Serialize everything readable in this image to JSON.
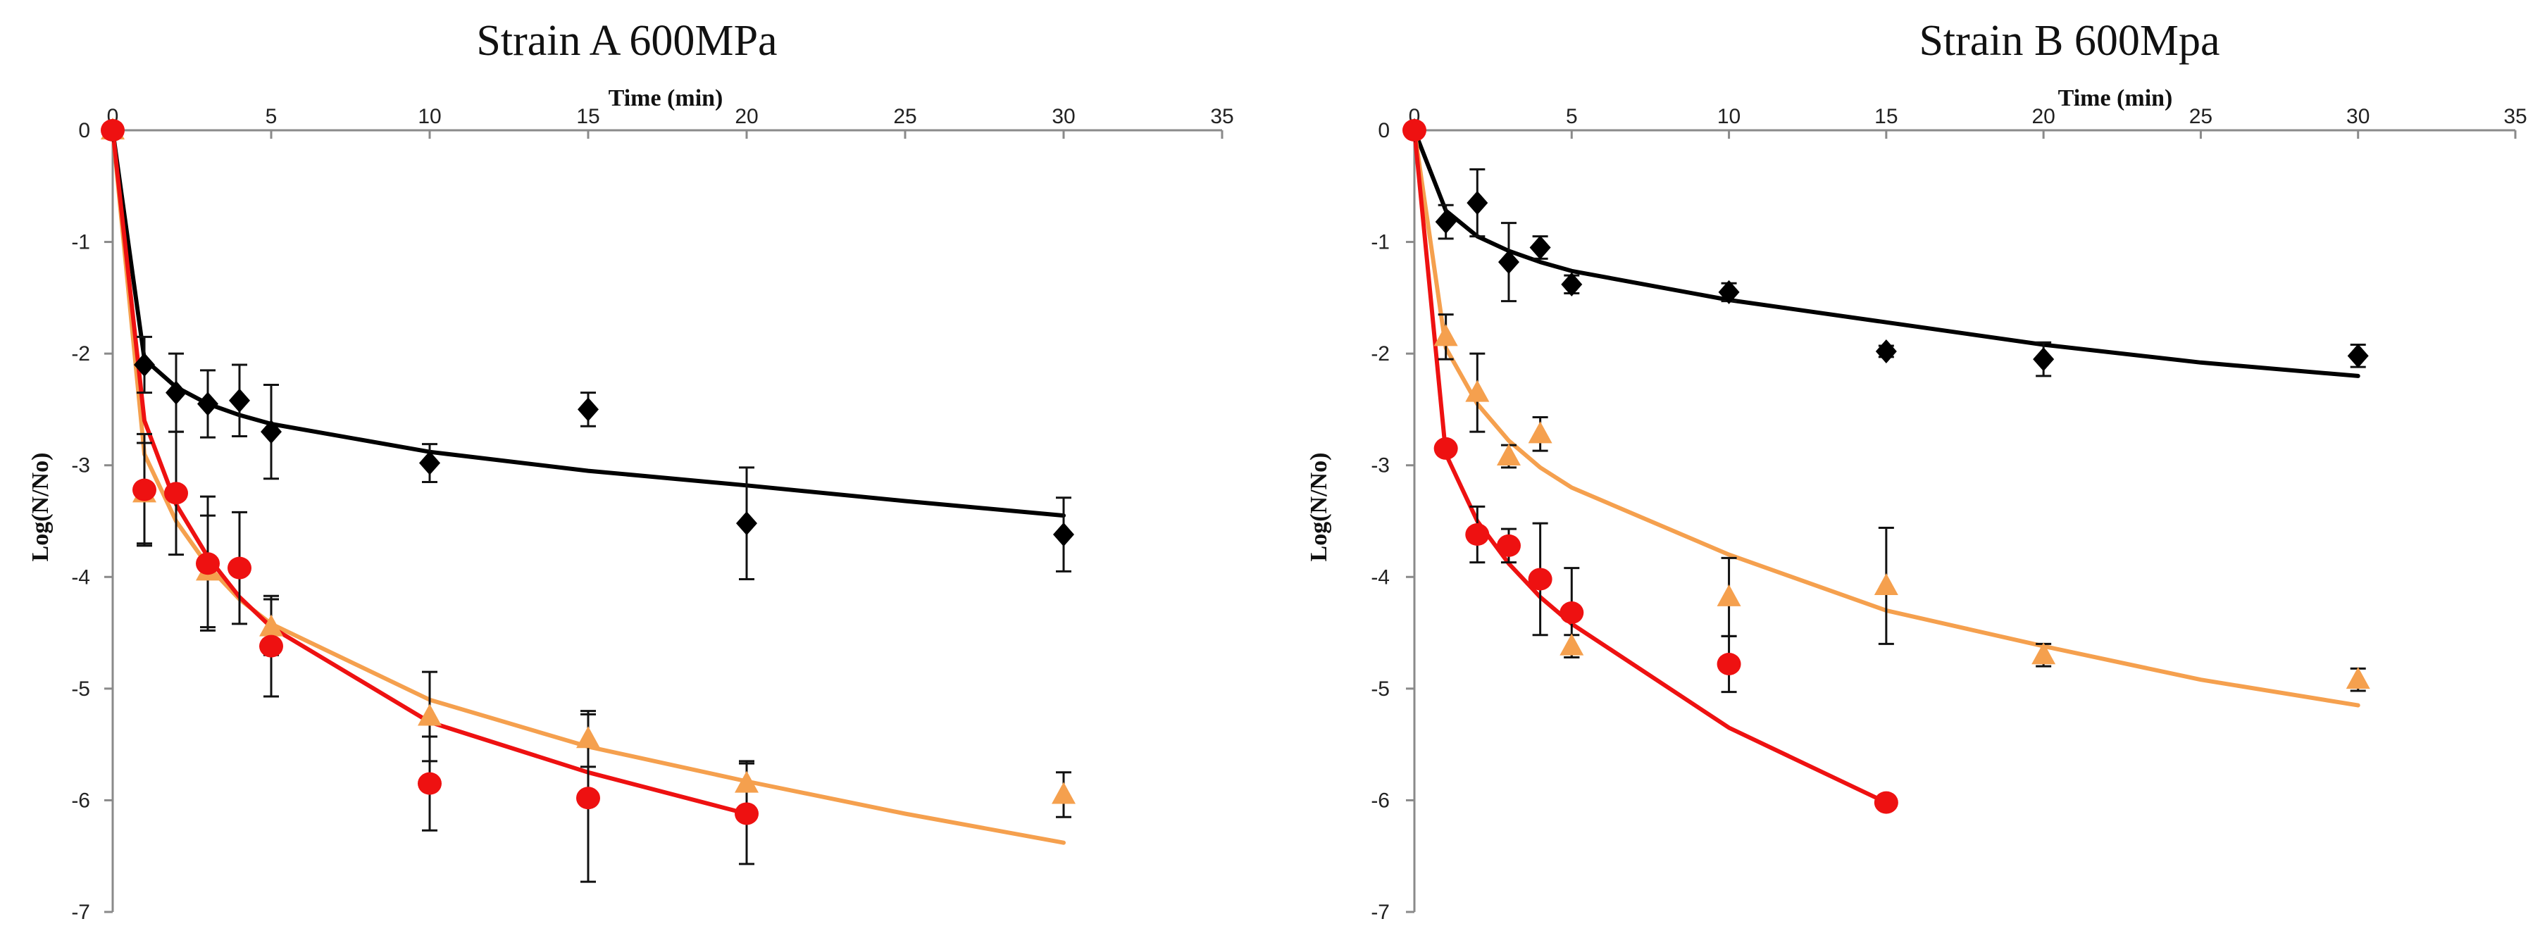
{
  "colors": {
    "black_series": "#000000",
    "orange_series": "#F5A04E",
    "red_series": "#EE1111",
    "axis": "#8a8a8a",
    "error_bar": "#111111"
  },
  "chart_data": [
    {
      "type": "scatter",
      "title": "Strain A 600MPa",
      "xlabel": "Time (min)",
      "ylabel": "Log(N/No)",
      "xlim": [
        0,
        35
      ],
      "ylim": [
        -7,
        0
      ],
      "x_ticks": [
        0,
        5,
        10,
        15,
        20,
        25,
        30,
        35
      ],
      "y_ticks": [
        0,
        -1,
        -2,
        -3,
        -4,
        -5,
        -6,
        -7
      ],
      "series": [
        {
          "name": "black",
          "marker": "diamond",
          "color": "#000000",
          "x": [
            0,
            1,
            2,
            3,
            4,
            5,
            10,
            15,
            20,
            30
          ],
          "y": [
            0,
            -2.1,
            -2.35,
            -2.45,
            -2.42,
            -2.7,
            -2.98,
            -2.5,
            -3.52,
            -3.62
          ],
          "err": [
            0,
            0.25,
            0.35,
            0.3,
            0.32,
            0.42,
            0.17,
            0.15,
            0.5,
            0.33
          ],
          "fit": {
            "kind": "log",
            "anchor": 0,
            "x": [
              1,
              2,
              3,
              4,
              5,
              10,
              15,
              20,
              25,
              30
            ],
            "y": [
              -2.05,
              -2.3,
              -2.45,
              -2.55,
              -2.63,
              -2.88,
              -3.05,
              -3.18,
              -3.32,
              -3.45
            ]
          }
        },
        {
          "name": "orange",
          "marker": "triangle",
          "color": "#F5A04E",
          "x": [
            0,
            1,
            3,
            5,
            10,
            15,
            20,
            30
          ],
          "y": [
            0,
            -3.25,
            -3.95,
            -4.45,
            -5.25,
            -5.45,
            -5.85,
            -5.95
          ],
          "err": [
            0,
            0.45,
            0.5,
            0.25,
            0.4,
            0.25,
            0.2,
            0.2
          ],
          "fit": {
            "kind": "log",
            "anchor": 0,
            "x": [
              1,
              2,
              3,
              4,
              5,
              10,
              15,
              20,
              25,
              30
            ],
            "y": [
              -2.9,
              -3.5,
              -3.9,
              -4.2,
              -4.42,
              -5.1,
              -5.52,
              -5.83,
              -6.12,
              -6.38
            ]
          }
        },
        {
          "name": "red",
          "marker": "circle",
          "color": "#EE1111",
          "x": [
            0,
            1,
            2,
            3,
            4,
            5,
            10,
            15,
            20
          ],
          "y": [
            0,
            -3.22,
            -3.25,
            -3.88,
            -3.92,
            -4.62,
            -5.85,
            -5.98,
            -6.12
          ],
          "err": [
            0,
            0.5,
            0.55,
            0.6,
            0.5,
            0.45,
            0.42,
            0.75,
            0.45
          ],
          "fit": {
            "kind": "log",
            "anchor": 0,
            "x": [
              1,
              2,
              3,
              4,
              5,
              10,
              15,
              20
            ],
            "y": [
              -2.6,
              -3.35,
              -3.82,
              -4.18,
              -4.45,
              -5.3,
              -5.75,
              -6.12
            ]
          }
        }
      ]
    },
    {
      "type": "scatter",
      "title": "Strain B 600Mpa",
      "xlabel": "Time (min)",
      "ylabel": "Log(N/No)",
      "xlim": [
        0,
        35
      ],
      "ylim": [
        -7,
        0
      ],
      "x_ticks": [
        0,
        5,
        10,
        15,
        20,
        25,
        30,
        35
      ],
      "y_ticks": [
        0,
        -1,
        -2,
        -3,
        -4,
        -5,
        -6,
        -7
      ],
      "series": [
        {
          "name": "black",
          "marker": "diamond",
          "color": "#000000",
          "x": [
            0,
            1,
            2,
            3,
            4,
            5,
            10,
            15,
            20,
            30
          ],
          "y": [
            0,
            -0.82,
            -0.65,
            -1.18,
            -1.05,
            -1.38,
            -1.45,
            -1.98,
            -2.05,
            -2.02
          ],
          "err": [
            0,
            0.15,
            0.3,
            0.35,
            0.1,
            0.08,
            0.08,
            0.05,
            0.15,
            0.1
          ],
          "fit": {
            "kind": "log",
            "anchor": 0,
            "x": [
              1,
              2,
              3,
              4,
              5,
              10,
              15,
              20,
              25,
              30
            ],
            "y": [
              -0.72,
              -0.95,
              -1.08,
              -1.18,
              -1.26,
              -1.52,
              -1.72,
              -1.92,
              -2.08,
              -2.2
            ]
          }
        },
        {
          "name": "orange",
          "marker": "triangle",
          "color": "#F5A04E",
          "x": [
            1,
            2,
            3,
            4,
            5,
            10,
            15,
            20,
            30
          ],
          "y": [
            -1.85,
            -2.35,
            -2.92,
            -2.72,
            -4.62,
            -4.18,
            -4.08,
            -4.7,
            -4.92
          ],
          "err": [
            0.2,
            0.35,
            0.1,
            0.15,
            0.1,
            0.35,
            0.52,
            0.1,
            0.1
          ],
          "fit": {
            "kind": "log",
            "anchor": 0,
            "x": [
              1,
              2,
              3,
              4,
              5,
              10,
              15,
              20,
              25,
              30
            ],
            "y": [
              -1.95,
              -2.45,
              -2.78,
              -3.02,
              -3.2,
              -3.8,
              -4.3,
              -4.62,
              -4.92,
              -5.15
            ]
          }
        },
        {
          "name": "red",
          "marker": "circle",
          "color": "#EE1111",
          "x": [
            0,
            1,
            2,
            3,
            4,
            5,
            10,
            15
          ],
          "y": [
            0,
            -2.85,
            -3.62,
            -3.72,
            -4.02,
            -4.32,
            -4.78,
            -6.02
          ],
          "err": [
            0,
            0.05,
            0.25,
            0.15,
            0.5,
            0.4,
            0.25,
            0.05
          ],
          "fit": {
            "kind": "log",
            "anchor": 0,
            "x": [
              1,
              2,
              3,
              4,
              5,
              10,
              15
            ],
            "y": [
              -2.9,
              -3.5,
              -3.88,
              -4.18,
              -4.42,
              -5.35,
              -6.02
            ]
          }
        }
      ]
    }
  ]
}
